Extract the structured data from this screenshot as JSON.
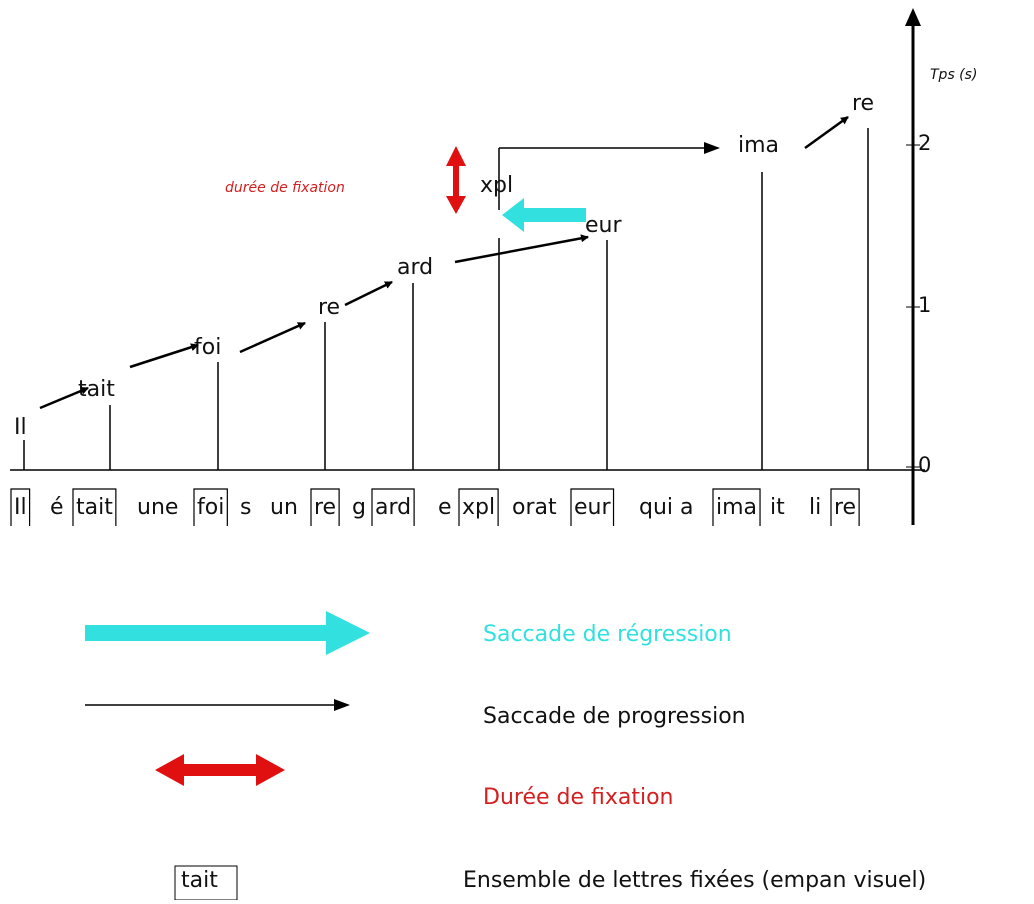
{
  "axis": {
    "label": "Tps (s)",
    "ticks": [
      "0",
      "1",
      "2"
    ]
  },
  "annotation": "durée de fixation",
  "fixations": [
    "Il",
    "tait",
    "foi",
    "re",
    "ard",
    "xpl",
    "eur",
    "ima",
    "re"
  ],
  "sentence": [
    {
      "text": "Il",
      "fixed": true
    },
    {
      "text": "é",
      "fixed": false
    },
    {
      "text": "tait",
      "fixed": true
    },
    {
      "text": "une",
      "fixed": false
    },
    {
      "text": "foi",
      "fixed": true
    },
    {
      "text": "s",
      "fixed": false
    },
    {
      "text": "un",
      "fixed": false
    },
    {
      "text": "re",
      "fixed": true
    },
    {
      "text": "g",
      "fixed": false
    },
    {
      "text": "ard",
      "fixed": true
    },
    {
      "text": "e",
      "fixed": false
    },
    {
      "text": "xpl",
      "fixed": true
    },
    {
      "text": "orat",
      "fixed": false
    },
    {
      "text": "eur",
      "fixed": true
    },
    {
      "text": "qui a",
      "fixed": false
    },
    {
      "text": "ima",
      "fixed": true
    },
    {
      "text": "it",
      "fixed": false
    },
    {
      "text": "li",
      "fixed": false
    },
    {
      "text": "re",
      "fixed": true
    }
  ],
  "legend": {
    "regression": "Saccade de régression",
    "progression": "Saccade de progression",
    "fixation": "Durée de fixation",
    "span_sample": "tait",
    "span": "Ensemble de lettres fixées (empan visuel)"
  }
}
